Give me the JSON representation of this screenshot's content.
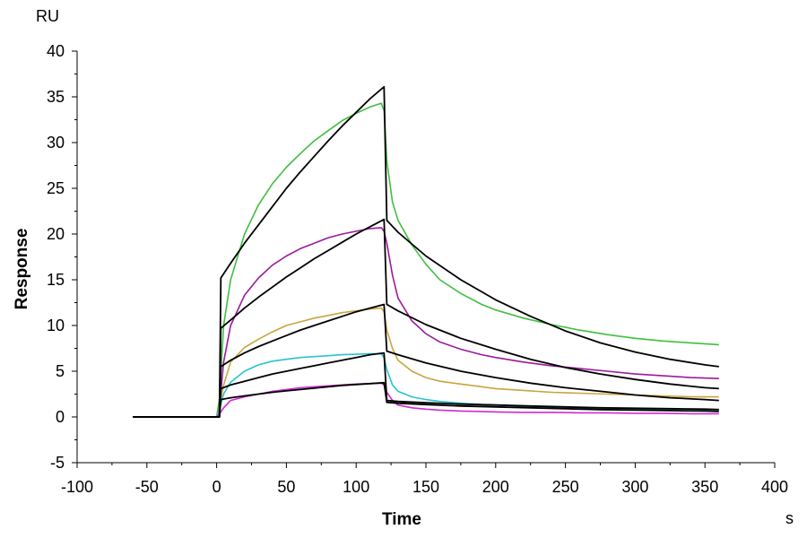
{
  "chart_data": {
    "type": "line",
    "title": "",
    "xlabel": "Time",
    "ylabel": "Response",
    "x_unit": "s",
    "y_unit": "RU",
    "xlim": [
      -100,
      400
    ],
    "ylim": [
      -5,
      40
    ],
    "xticks": [
      -100,
      -50,
      0,
      50,
      100,
      150,
      200,
      250,
      300,
      350,
      400
    ],
    "yticks": [
      -5,
      0,
      5,
      10,
      15,
      20,
      25,
      30,
      35,
      40
    ],
    "grid": false,
    "legend": "none",
    "series": [
      {
        "role": "data",
        "color": "#3fbf3f",
        "points": [
          [
            -60,
            0
          ],
          [
            0,
            0
          ],
          [
            2,
            2
          ],
          [
            5,
            10
          ],
          [
            10,
            15
          ],
          [
            20,
            20
          ],
          [
            30,
            23.2
          ],
          [
            40,
            25.5
          ],
          [
            50,
            27.3
          ],
          [
            60,
            28.8
          ],
          [
            70,
            30.2
          ],
          [
            80,
            31.3
          ],
          [
            90,
            32.4
          ],
          [
            100,
            33.2
          ],
          [
            110,
            33.9
          ],
          [
            118,
            34.3
          ],
          [
            120,
            33.5
          ],
          [
            122,
            28
          ],
          [
            126,
            23.5
          ],
          [
            130,
            21.5
          ],
          [
            140,
            18.8
          ],
          [
            150,
            16.7
          ],
          [
            160,
            15
          ],
          [
            175,
            13.5
          ],
          [
            190,
            12.3
          ],
          [
            200,
            11.7
          ],
          [
            220,
            10.8
          ],
          [
            240,
            10.1
          ],
          [
            260,
            9.5
          ],
          [
            280,
            9
          ],
          [
            300,
            8.6
          ],
          [
            320,
            8.3
          ],
          [
            340,
            8.1
          ],
          [
            360,
            7.9
          ]
        ]
      },
      {
        "role": "data",
        "color": "#9b1a9b",
        "points": [
          [
            -60,
            0
          ],
          [
            0,
            0
          ],
          [
            2,
            1
          ],
          [
            5,
            6
          ],
          [
            10,
            10
          ],
          [
            20,
            13.3
          ],
          [
            30,
            15.2
          ],
          [
            40,
            16.6
          ],
          [
            50,
            17.6
          ],
          [
            60,
            18.4
          ],
          [
            70,
            19
          ],
          [
            80,
            19.6
          ],
          [
            90,
            20
          ],
          [
            100,
            20.3
          ],
          [
            110,
            20.6
          ],
          [
            118,
            20.7
          ],
          [
            120,
            20.3
          ],
          [
            122,
            19
          ],
          [
            126,
            15.5
          ],
          [
            130,
            13
          ],
          [
            140,
            10.5
          ],
          [
            150,
            9.1
          ],
          [
            160,
            8.2
          ],
          [
            175,
            7.4
          ],
          [
            190,
            6.8
          ],
          [
            200,
            6.5
          ],
          [
            220,
            6
          ],
          [
            240,
            5.6
          ],
          [
            260,
            5.3
          ],
          [
            280,
            5
          ],
          [
            300,
            4.7
          ],
          [
            320,
            4.5
          ],
          [
            340,
            4.3
          ],
          [
            360,
            4.2
          ]
        ]
      },
      {
        "role": "data",
        "color": "#c9a43f",
        "points": [
          [
            -60,
            0
          ],
          [
            0,
            0
          ],
          [
            2,
            1
          ],
          [
            5,
            3.5
          ],
          [
            10,
            6
          ],
          [
            20,
            7.6
          ],
          [
            30,
            8.5
          ],
          [
            40,
            9.3
          ],
          [
            50,
            10
          ],
          [
            60,
            10.4
          ],
          [
            70,
            10.8
          ],
          [
            80,
            11.1
          ],
          [
            90,
            11.4
          ],
          [
            100,
            11.6
          ],
          [
            110,
            11.8
          ],
          [
            118,
            11.9
          ],
          [
            120,
            11.5
          ],
          [
            122,
            9.5
          ],
          [
            126,
            7.5
          ],
          [
            130,
            6.2
          ],
          [
            140,
            5
          ],
          [
            150,
            4.3
          ],
          [
            160,
            3.9
          ],
          [
            175,
            3.6
          ],
          [
            190,
            3.3
          ],
          [
            200,
            3.1
          ],
          [
            220,
            2.9
          ],
          [
            240,
            2.7
          ],
          [
            260,
            2.6
          ],
          [
            280,
            2.5
          ],
          [
            300,
            2.4
          ],
          [
            320,
            2.3
          ],
          [
            340,
            2.2
          ],
          [
            360,
            2.2
          ]
        ]
      },
      {
        "role": "data",
        "color": "#27c4d0",
        "points": [
          [
            -60,
            0
          ],
          [
            0,
            0
          ],
          [
            2,
            0.8
          ],
          [
            5,
            2.5
          ],
          [
            10,
            3.8
          ],
          [
            20,
            5
          ],
          [
            30,
            5.7
          ],
          [
            40,
            6.1
          ],
          [
            50,
            6.3
          ],
          [
            60,
            6.5
          ],
          [
            70,
            6.6
          ],
          [
            80,
            6.7
          ],
          [
            90,
            6.8
          ],
          [
            100,
            6.85
          ],
          [
            110,
            6.9
          ],
          [
            118,
            6.9
          ],
          [
            120,
            6.5
          ],
          [
            122,
            5.2
          ],
          [
            126,
            3.5
          ],
          [
            130,
            2.8
          ],
          [
            140,
            2.2
          ],
          [
            150,
            1.9
          ],
          [
            160,
            1.7
          ],
          [
            175,
            1.5
          ],
          [
            190,
            1.35
          ],
          [
            200,
            1.3
          ],
          [
            220,
            1.2
          ],
          [
            240,
            1.1
          ],
          [
            260,
            1
          ],
          [
            280,
            0.95
          ],
          [
            300,
            0.9
          ],
          [
            320,
            0.85
          ],
          [
            340,
            0.85
          ],
          [
            360,
            0.8
          ]
        ]
      },
      {
        "role": "data",
        "color": "#d02ad0",
        "points": [
          [
            -60,
            0
          ],
          [
            0,
            0
          ],
          [
            2,
            0.3
          ],
          [
            5,
            1
          ],
          [
            10,
            1.8
          ],
          [
            20,
            2.2
          ],
          [
            30,
            2.5
          ],
          [
            40,
            2.8
          ],
          [
            50,
            3
          ],
          [
            60,
            3.2
          ],
          [
            70,
            3.3
          ],
          [
            80,
            3.4
          ],
          [
            90,
            3.5
          ],
          [
            100,
            3.6
          ],
          [
            110,
            3.65
          ],
          [
            118,
            3.7
          ],
          [
            120,
            3.5
          ],
          [
            122,
            2.7
          ],
          [
            126,
            1.8
          ],
          [
            130,
            1.3
          ],
          [
            140,
            1
          ],
          [
            150,
            0.85
          ],
          [
            160,
            0.75
          ],
          [
            175,
            0.65
          ],
          [
            190,
            0.6
          ],
          [
            200,
            0.55
          ],
          [
            220,
            0.5
          ],
          [
            240,
            0.5
          ],
          [
            260,
            0.45
          ],
          [
            280,
            0.45
          ],
          [
            300,
            0.4
          ],
          [
            320,
            0.4
          ],
          [
            340,
            0.35
          ],
          [
            360,
            0.35
          ]
        ]
      },
      {
        "role": "fit",
        "color": "#000000",
        "points": [
          [
            -60,
            0
          ],
          [
            0,
            0
          ],
          [
            2,
            0
          ],
          [
            3,
            15.2
          ],
          [
            10,
            16.8
          ],
          [
            20,
            19
          ],
          [
            30,
            21
          ],
          [
            40,
            23
          ],
          [
            50,
            25
          ],
          [
            60,
            26.8
          ],
          [
            70,
            28.5
          ],
          [
            80,
            30.2
          ],
          [
            90,
            31.8
          ],
          [
            100,
            33.3
          ],
          [
            110,
            34.8
          ],
          [
            120,
            36.1
          ],
          [
            122,
            21.5
          ],
          [
            130,
            20.2
          ],
          [
            150,
            17.6
          ],
          [
            175,
            15
          ],
          [
            200,
            12.8
          ],
          [
            225,
            11
          ],
          [
            250,
            9.4
          ],
          [
            275,
            8.1
          ],
          [
            300,
            7.1
          ],
          [
            325,
            6.3
          ],
          [
            350,
            5.7
          ],
          [
            360,
            5.5
          ]
        ]
      },
      {
        "role": "fit",
        "color": "#000000",
        "points": [
          [
            -60,
            0
          ],
          [
            0,
            0
          ],
          [
            2,
            0
          ],
          [
            3,
            9.7
          ],
          [
            10,
            10.6
          ],
          [
            20,
            11.9
          ],
          [
            30,
            13.1
          ],
          [
            40,
            14.2
          ],
          [
            50,
            15.3
          ],
          [
            60,
            16.3
          ],
          [
            70,
            17.3
          ],
          [
            80,
            18.2
          ],
          [
            90,
            19.1
          ],
          [
            100,
            20
          ],
          [
            110,
            20.8
          ],
          [
            120,
            21.6
          ],
          [
            122,
            12.3
          ],
          [
            130,
            11.6
          ],
          [
            150,
            10.1
          ],
          [
            175,
            8.6
          ],
          [
            200,
            7.4
          ],
          [
            225,
            6.3
          ],
          [
            250,
            5.4
          ],
          [
            275,
            4.7
          ],
          [
            300,
            4.1
          ],
          [
            325,
            3.6
          ],
          [
            350,
            3.2
          ],
          [
            360,
            3.1
          ]
        ]
      },
      {
        "role": "fit",
        "color": "#000000",
        "points": [
          [
            -60,
            0
          ],
          [
            0,
            0
          ],
          [
            2,
            0
          ],
          [
            3,
            5.5
          ],
          [
            10,
            6.2
          ],
          [
            20,
            7
          ],
          [
            30,
            7.7
          ],
          [
            40,
            8.3
          ],
          [
            50,
            8.9
          ],
          [
            60,
            9.5
          ],
          [
            70,
            10
          ],
          [
            80,
            10.5
          ],
          [
            90,
            11
          ],
          [
            100,
            11.5
          ],
          [
            110,
            11.9
          ],
          [
            120,
            12.3
          ],
          [
            122,
            7.2
          ],
          [
            130,
            6.8
          ],
          [
            150,
            5.9
          ],
          [
            175,
            5
          ],
          [
            200,
            4.3
          ],
          [
            225,
            3.7
          ],
          [
            250,
            3.2
          ],
          [
            275,
            2.8
          ],
          [
            300,
            2.4
          ],
          [
            325,
            2.1
          ],
          [
            350,
            1.9
          ],
          [
            360,
            1.8
          ]
        ]
      },
      {
        "role": "fit",
        "color": "#000000",
        "points": [
          [
            -60,
            0
          ],
          [
            0,
            0
          ],
          [
            2,
            0
          ],
          [
            3,
            3.1
          ],
          [
            10,
            3.5
          ],
          [
            20,
            3.9
          ],
          [
            30,
            4.3
          ],
          [
            40,
            4.7
          ],
          [
            50,
            5
          ],
          [
            60,
            5.3
          ],
          [
            70,
            5.6
          ],
          [
            80,
            5.9
          ],
          [
            90,
            6.2
          ],
          [
            100,
            6.5
          ],
          [
            110,
            6.8
          ],
          [
            120,
            7
          ],
          [
            122,
            1.8
          ],
          [
            130,
            1.7
          ],
          [
            150,
            1.55
          ],
          [
            175,
            1.4
          ],
          [
            200,
            1.3
          ],
          [
            225,
            1.2
          ],
          [
            250,
            1.1
          ],
          [
            275,
            1
          ],
          [
            300,
            0.95
          ],
          [
            325,
            0.9
          ],
          [
            350,
            0.85
          ],
          [
            360,
            0.8
          ]
        ]
      },
      {
        "role": "fit",
        "color": "#000000",
        "points": [
          [
            -60,
            0
          ],
          [
            0,
            0
          ],
          [
            2,
            0
          ],
          [
            3,
            1.9
          ],
          [
            10,
            2.1
          ],
          [
            20,
            2.3
          ],
          [
            30,
            2.5
          ],
          [
            40,
            2.7
          ],
          [
            50,
            2.85
          ],
          [
            60,
            3
          ],
          [
            70,
            3.15
          ],
          [
            80,
            3.3
          ],
          [
            90,
            3.45
          ],
          [
            100,
            3.55
          ],
          [
            110,
            3.65
          ],
          [
            120,
            3.75
          ],
          [
            122,
            1.6
          ],
          [
            130,
            1.5
          ],
          [
            150,
            1.35
          ],
          [
            175,
            1.2
          ],
          [
            200,
            1.1
          ],
          [
            225,
            1
          ],
          [
            250,
            0.9
          ],
          [
            275,
            0.8
          ],
          [
            300,
            0.75
          ],
          [
            325,
            0.7
          ],
          [
            350,
            0.65
          ],
          [
            360,
            0.6
          ]
        ]
      }
    ]
  }
}
